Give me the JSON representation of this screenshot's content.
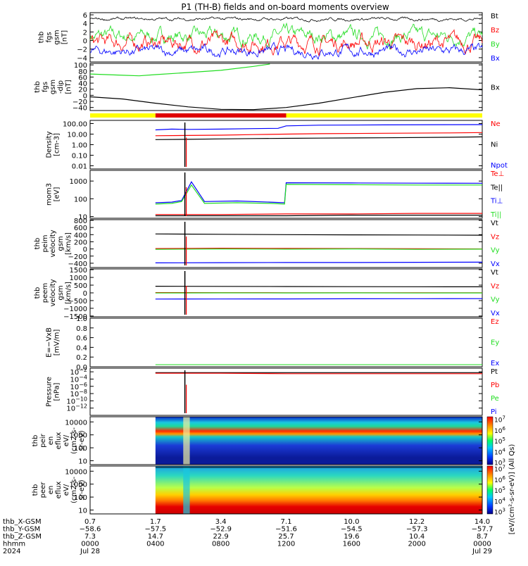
{
  "title": "P1 (TH-B) fields and on-board moments overview",
  "colors": {
    "black": "#000000",
    "red": "#ff0000",
    "green": "#22dd22",
    "blue": "#0000ff",
    "yellow": "#ffff00",
    "barred": "#e00000"
  },
  "chart_data": [
    {
      "type": "line",
      "ylabel": [
        "thb",
        "fgs",
        "gsm",
        "[nT]"
      ],
      "ylim": [
        -5,
        6.5
      ],
      "yticks": [
        "6",
        "4",
        "2",
        "0",
        "−2",
        "−4"
      ],
      "ytick_values": [
        6,
        4,
        2,
        0,
        -2,
        -4
      ],
      "legend": [
        {
          "name": "Bt",
          "color": "black"
        },
        {
          "name": "Bz",
          "color": "red"
        },
        {
          "name": "By",
          "color": "green"
        },
        {
          "name": "Bx",
          "color": "blue"
        }
      ]
    },
    {
      "type": "line",
      "ylabel": [
        "thb",
        "fgs",
        "gsm",
        "-dip",
        "[nT]"
      ],
      "ylim": [
        -50,
        105
      ],
      "yticks": [
        "100",
        "80",
        "60",
        "40",
        "20",
        "0",
        "−20",
        "−40"
      ],
      "ytick_values": [
        100,
        80,
        60,
        40,
        20,
        0,
        -20,
        -40
      ],
      "legend": [
        {
          "name": "Bx",
          "color": "black"
        }
      ],
      "series": [
        {
          "name": "Bx",
          "color": "black",
          "x": [
            0,
            2,
            4,
            6,
            8,
            10,
            12,
            14,
            16,
            18,
            20,
            22,
            24
          ],
          "y": [
            -5,
            -12,
            -26,
            -38,
            -46,
            -47,
            -40,
            -26,
            -8,
            10,
            22,
            25,
            18
          ]
        },
        {
          "name": "green",
          "color": "green",
          "x": [
            0,
            2,
            3,
            4,
            6,
            8,
            10,
            11
          ],
          "y": [
            70,
            66,
            64,
            68,
            75,
            82,
            95,
            106
          ]
        }
      ]
    },
    {
      "type": "area",
      "title": "mode bar",
      "segments": [
        {
          "from": 0,
          "to": 4,
          "color": "yellow"
        },
        {
          "from": 4,
          "to": 12,
          "color": "barred"
        },
        {
          "from": 12,
          "to": 24,
          "color": "yellow"
        }
      ]
    },
    {
      "type": "line",
      "ylabel": [
        "Density",
        "[cm-3]"
      ],
      "yscale": "log",
      "ylim": [
        0.005,
        200
      ],
      "yticks": [
        "100.00",
        "10.00",
        "1.00",
        "0.10",
        "0.01"
      ],
      "ytick_values": [
        100,
        10,
        1,
        0.1,
        0.01
      ],
      "legend": [
        {
          "name": "Ne",
          "color": "red"
        },
        {
          "name": "Ni",
          "color": "black"
        },
        {
          "name": "Npot",
          "color": "blue"
        }
      ],
      "series": [
        {
          "name": "Npot",
          "color": "blue",
          "x": [
            4,
            5,
            6,
            8,
            10,
            11.5,
            12,
            14,
            18,
            22,
            24
          ],
          "y": [
            25,
            30,
            28,
            30,
            33,
            35,
            60,
            70,
            75,
            78,
            80
          ]
        },
        {
          "name": "Ne",
          "color": "red",
          "x": [
            4,
            6,
            8,
            10,
            12,
            14,
            18,
            22,
            24
          ],
          "y": [
            7,
            7.5,
            8,
            9,
            10,
            11,
            12,
            13,
            14
          ]
        },
        {
          "name": "Ni",
          "color": "black",
          "x": [
            4,
            6,
            8,
            10,
            12,
            14,
            18,
            22,
            24
          ],
          "y": [
            3,
            3.2,
            3.5,
            3.8,
            4,
            4.2,
            4.5,
            5,
            5.5
          ]
        }
      ]
    },
    {
      "type": "line",
      "ylabel": [
        "mom3",
        "[eV]"
      ],
      "yscale": "log",
      "ylim": [
        8,
        4000
      ],
      "yticks": [
        "1000",
        "100",
        "10"
      ],
      "ytick_values": [
        1000,
        100,
        10
      ],
      "legend": [
        {
          "name": "Te⊥",
          "color": "red"
        },
        {
          "name": "Te||",
          "color": "black"
        },
        {
          "name": "Ti⊥",
          "color": "blue"
        },
        {
          "name": "Ti||",
          "color": "green"
        }
      ],
      "series": [
        {
          "name": "Ti⊥",
          "color": "blue",
          "x": [
            4,
            5,
            5.6,
            6.2,
            7,
            9,
            11,
            11.9,
            12,
            16,
            20,
            24
          ],
          "y": [
            60,
            65,
            80,
            900,
            70,
            75,
            65,
            60,
            800,
            780,
            760,
            750
          ]
        },
        {
          "name": "Ti||",
          "color": "green",
          "x": [
            4,
            5,
            5.6,
            6.2,
            7,
            9,
            11,
            11.9,
            12,
            16,
            20,
            24
          ],
          "y": [
            50,
            55,
            70,
            600,
            55,
            60,
            55,
            50,
            650,
            620,
            600,
            600
          ]
        },
        {
          "name": "Te||",
          "color": "black",
          "x": [
            4,
            8,
            12,
            16,
            20,
            24
          ],
          "y": [
            11,
            11,
            11,
            12,
            12,
            12
          ]
        },
        {
          "name": "Te⊥",
          "color": "red",
          "x": [
            4,
            8,
            12,
            16,
            20,
            24
          ],
          "y": [
            13,
            13,
            14,
            14,
            15,
            15
          ]
        }
      ]
    },
    {
      "type": "line",
      "ylabel": [
        "thb",
        "peim",
        "velocity",
        "gsm",
        "[km/s]"
      ],
      "ylim": [
        -520,
        820
      ],
      "yticks": [
        "800",
        "600",
        "400",
        "200",
        "0",
        "−200",
        "−400"
      ],
      "ytick_values": [
        800,
        600,
        400,
        200,
        0,
        -200,
        -400
      ],
      "legend": [
        {
          "name": "Vt",
          "color": "black"
        },
        {
          "name": "Vz",
          "color": "red"
        },
        {
          "name": "Vy",
          "color": "green"
        },
        {
          "name": "Vx",
          "color": "blue"
        }
      ],
      "series": [
        {
          "name": "Vt",
          "color": "black",
          "x": [
            4,
            8,
            12,
            16,
            20,
            24
          ],
          "y": [
            420,
            410,
            400,
            395,
            390,
            385
          ]
        },
        {
          "name": "Vz",
          "color": "red",
          "x": [
            4,
            8,
            12,
            16,
            20,
            24
          ],
          "y": [
            10,
            20,
            15,
            10,
            5,
            0
          ]
        },
        {
          "name": "Vy",
          "color": "green",
          "x": [
            4,
            8,
            12,
            16,
            20,
            24
          ],
          "y": [
            -10,
            0,
            -5,
            0,
            -10,
            -5
          ]
        },
        {
          "name": "Vx",
          "color": "blue",
          "x": [
            4,
            8,
            12,
            16,
            20,
            24
          ],
          "y": [
            -390,
            -385,
            -380,
            -380,
            -375,
            -370
          ]
        }
      ]
    },
    {
      "type": "line",
      "ylabel": [
        "thb",
        "peem",
        "velocity",
        "gsm",
        "[km/s]"
      ],
      "ylim": [
        -1550,
        1550
      ],
      "yticks": [
        "1500",
        "1000",
        "500",
        "0",
        "−500",
        "−1000",
        "−1500"
      ],
      "ytick_values": [
        1500,
        1000,
        500,
        0,
        -500,
        -1000,
        -1500
      ],
      "legend": [
        {
          "name": "Vt",
          "color": "black"
        },
        {
          "name": "Vz",
          "color": "red"
        },
        {
          "name": "Vy",
          "color": "green"
        },
        {
          "name": "Vx",
          "color": "blue"
        }
      ],
      "series": [
        {
          "name": "Vt",
          "color": "black",
          "x": [
            4,
            8,
            12,
            16,
            20,
            24
          ],
          "y": [
            430,
            420,
            410,
            400,
            395,
            390
          ]
        },
        {
          "name": "Vz",
          "color": "red",
          "x": [
            4,
            8,
            12,
            16,
            20,
            24
          ],
          "y": [
            20,
            15,
            10,
            10,
            5,
            5
          ]
        },
        {
          "name": "Vy",
          "color": "green",
          "x": [
            4,
            8,
            12,
            16,
            20,
            24
          ],
          "y": [
            -10,
            0,
            -5,
            0,
            -10,
            -5
          ]
        },
        {
          "name": "Vx",
          "color": "blue",
          "x": [
            4,
            8,
            12,
            16,
            20,
            24
          ],
          "y": [
            -400,
            -395,
            -390,
            -385,
            -380,
            -375
          ]
        }
      ]
    },
    {
      "type": "line",
      "ylabel": [
        "E=−VxB",
        "[mV/m]"
      ],
      "ylim": [
        0,
        1.0
      ],
      "yticks": [
        "1.0",
        "0.8",
        "0.6",
        "0.4",
        "0.2",
        "0.0"
      ],
      "ytick_values": [
        1.0,
        0.8,
        0.6,
        0.4,
        0.2,
        0.0
      ],
      "legend": [
        {
          "name": "Ez",
          "color": "red"
        },
        {
          "name": "Ey",
          "color": "green"
        },
        {
          "name": "Ex",
          "color": "blue"
        }
      ]
    },
    {
      "type": "line",
      "ylabel": [
        "Pressure",
        "[nPa]"
      ],
      "yscale": "log",
      "ylim": [
        1e-14,
        0.1
      ],
      "yticks": [
        "10−2",
        "10−4",
        "10−6",
        "10−8",
        "10−10",
        "10−12"
      ],
      "ytick_values": [
        0.01,
        0.0001,
        1e-06,
        1e-08,
        1e-10,
        1e-12
      ],
      "legend": [
        {
          "name": "Pt",
          "color": "black"
        },
        {
          "name": "Pb",
          "color": "red"
        },
        {
          "name": "Pe",
          "color": "green"
        },
        {
          "name": "Pi",
          "color": "blue"
        }
      ],
      "series": [
        {
          "name": "Pt",
          "color": "black",
          "x": [
            4,
            8,
            12,
            16,
            20,
            24
          ],
          "y": [
            0.006,
            0.006,
            0.006,
            0.006,
            0.006,
            0.006
          ]
        },
        {
          "name": "Pb",
          "color": "red",
          "x": [
            4,
            8,
            12,
            16,
            20,
            24
          ],
          "y": [
            0.004,
            0.004,
            0.003,
            0.003,
            0.003,
            0.003
          ]
        }
      ]
    },
    {
      "type": "heatmap",
      "ylabel": [
        "thb",
        "peir",
        "en",
        "eflux",
        "eV/",
        "(cm2-s-",
        "sr-eV)"
      ],
      "yscale": "log",
      "ylim": [
        5,
        25000
      ],
      "yticks": [
        "10000",
        "1000",
        "100",
        "10"
      ],
      "ytick_values": [
        10000,
        1000,
        100,
        10
      ],
      "colorbar_ticks": [
        "107",
        "106",
        "105",
        "104",
        "103"
      ],
      "colorbar_values": [
        10000000,
        1000000,
        100000,
        10000,
        1000
      ]
    },
    {
      "type": "heatmap",
      "ylabel": [
        "thb",
        "peer",
        "en",
        "eflux",
        "eV/",
        "(cm2-s-",
        "sr-eV)"
      ],
      "yscale": "log",
      "ylim": [
        5,
        25000
      ],
      "yticks": [
        "10000",
        "1000",
        "100",
        "10"
      ],
      "ytick_values": [
        10000,
        1000,
        100,
        10
      ],
      "colorbar_ticks": [
        "107",
        "106",
        "105",
        "104",
        "103"
      ],
      "colorbar_values": [
        10000000,
        1000000,
        100000,
        10000,
        1000
      ]
    }
  ],
  "colorbar_label": "[eV/(cm²-s-sr-eV)] (All Qs)",
  "xaxis": {
    "row_labels": [
      "thb_X-GSM",
      "thb_Y-GSM",
      "thb_Z-GSM",
      "hhmm",
      "2024"
    ],
    "tick_hours": [
      0,
      4,
      8,
      12,
      16,
      20,
      24
    ],
    "columns": [
      [
        "0.7",
        "−58.6",
        "7.3",
        "0000",
        "Jul 28"
      ],
      [
        "1.7",
        "−57.5",
        "14.7",
        "0400",
        ""
      ],
      [
        "3.4",
        "−52.9",
        "22.9",
        "0800",
        ""
      ],
      [
        "7.1",
        "−51.6",
        "25.7",
        "1200",
        ""
      ],
      [
        "10.0",
        "−54.5",
        "19.6",
        "1600",
        ""
      ],
      [
        "12.2",
        "−57.3",
        "10.4",
        "2000",
        ""
      ],
      [
        "14.0",
        "−57.7",
        "8.7",
        "0000",
        "Jul 29"
      ]
    ]
  }
}
